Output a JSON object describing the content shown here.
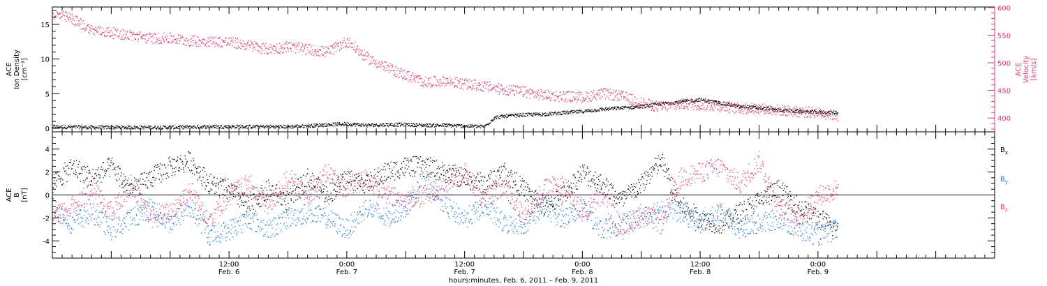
{
  "colors": {
    "axis": "#000000",
    "black_series": "#000000",
    "pink_series": "#e0366a",
    "blue_series": "#1e78d2"
  },
  "x_axis": {
    "title": "hours:minutes, Feb.  6, 2011 – Feb.  9, 2011",
    "range_hours": [
      0,
      96
    ],
    "ticks": [
      {
        "hour": 18,
        "time": "12:00",
        "date": "Feb. 6"
      },
      {
        "hour": 30,
        "time": "0:00",
        "date": "Feb. 7"
      },
      {
        "hour": 42,
        "time": "12:00",
        "date": "Feb. 7"
      },
      {
        "hour": 54,
        "time": "0:00",
        "date": "Feb. 8"
      },
      {
        "hour": 66,
        "time": "12:00",
        "date": "Feb. 8"
      },
      {
        "hour": 78,
        "time": "0:00",
        "date": "Feb. 9"
      }
    ]
  },
  "chart_data": [
    {
      "type": "scatter",
      "panel": "top",
      "ylabel_left": [
        "ACE",
        "Ion Density",
        "[cm⁻³]"
      ],
      "ylabel_right": [
        "ACE",
        "Velocity",
        "[km/s]"
      ],
      "ylim_left": [
        -0.5,
        17.5
      ],
      "ylim_right": [
        375,
        601
      ],
      "yticks_left": [
        0,
        5,
        10,
        15
      ],
      "yticks_right": [
        400,
        450,
        500,
        550,
        600
      ],
      "series": [
        {
          "axis": "left",
          "color": "#000000",
          "hours": [
            0,
            4,
            8,
            12,
            16,
            20,
            24,
            26,
            28,
            30,
            32,
            34,
            36,
            38,
            40,
            42,
            44,
            45,
            46,
            48,
            50,
            52,
            54,
            56,
            58,
            60,
            62,
            64,
            66,
            68,
            70,
            72,
            74,
            76,
            78,
            80
          ],
          "values": [
            0.3,
            0.2,
            0.2,
            0.2,
            0.3,
            0.3,
            0.3,
            0.4,
            0.6,
            0.7,
            0.5,
            0.6,
            0.6,
            0.5,
            0.5,
            0.4,
            0.3,
            1.6,
            1.8,
            2.0,
            2.1,
            2.3,
            2.5,
            2.8,
            3.0,
            3.2,
            3.6,
            3.9,
            4.2,
            3.7,
            3.2,
            3.0,
            2.7,
            2.5,
            2.4,
            2.3
          ]
        },
        {
          "axis": "right",
          "color": "#e0366a",
          "hours": [
            0,
            2,
            4,
            6,
            8,
            10,
            12,
            14,
            16,
            18,
            20,
            22,
            24,
            26,
            28,
            30,
            32,
            34,
            36,
            38,
            40,
            42,
            44,
            46,
            48,
            50,
            52,
            54,
            56,
            58,
            60,
            62,
            64,
            66,
            68,
            70,
            72,
            74,
            76,
            78,
            80
          ],
          "values": [
            590,
            580,
            560,
            555,
            550,
            545,
            545,
            540,
            540,
            538,
            532,
            525,
            530,
            525,
            520,
            540,
            510,
            492,
            478,
            465,
            468,
            462,
            458,
            452,
            448,
            442,
            440,
            438,
            445,
            440,
            428,
            420,
            426,
            425,
            422,
            418,
            418,
            415,
            412,
            410,
            405
          ]
        }
      ]
    },
    {
      "type": "scatter",
      "panel": "bottom",
      "ylabel_left": [
        "ACE",
        "B",
        "[nT]"
      ],
      "ylim": [
        -5.5,
        5.5
      ],
      "yticks": [
        -4,
        -2,
        0,
        2,
        4
      ],
      "zero_line": true,
      "series": [
        {
          "name": "Bx",
          "color": "#000000",
          "hours": [
            0,
            2,
            4,
            6,
            8,
            10,
            12,
            14,
            16,
            18,
            20,
            22,
            24,
            26,
            28,
            30,
            32,
            34,
            36,
            38,
            40,
            42,
            44,
            46,
            48,
            50,
            52,
            54,
            56,
            58,
            60,
            62,
            64,
            66,
            68,
            70,
            72,
            74,
            76,
            78,
            80
          ],
          "values": [
            1.0,
            2.5,
            1.5,
            2.5,
            0.5,
            1.5,
            2.5,
            3.0,
            1.0,
            0.5,
            -1.0,
            0.5,
            -0.5,
            1.5,
            0.0,
            1.5,
            1.0,
            2.0,
            2.5,
            2.5,
            2.0,
            1.5,
            1.0,
            2.0,
            0.5,
            -1.0,
            0.0,
            2.0,
            1.0,
            -0.5,
            1.0,
            3.0,
            -1.0,
            -2.0,
            -2.5,
            -1.5,
            -0.5,
            0.5,
            -1.0,
            -2.0,
            -3.0
          ]
        },
        {
          "name": "By",
          "color": "#1e78d2",
          "hours": [
            0,
            2,
            4,
            6,
            8,
            10,
            12,
            14,
            16,
            18,
            20,
            22,
            24,
            26,
            28,
            30,
            32,
            34,
            36,
            38,
            40,
            42,
            44,
            46,
            48,
            50,
            52,
            54,
            56,
            58,
            60,
            62,
            64,
            66,
            68,
            70,
            72,
            74,
            76,
            78,
            80
          ],
          "values": [
            -1.0,
            -2.5,
            -1.5,
            -3.0,
            -2.0,
            -1.0,
            -2.5,
            -1.0,
            -3.5,
            -3.0,
            -2.0,
            -3.0,
            -2.0,
            -1.5,
            -2.0,
            -3.0,
            -1.0,
            -2.0,
            -1.0,
            1.5,
            -1.0,
            -2.0,
            -1.0,
            -2.5,
            -2.5,
            -1.0,
            -2.0,
            -1.0,
            -3.0,
            -2.5,
            -2.0,
            -1.0,
            -1.5,
            -2.5,
            -1.5,
            -3.0,
            -2.5,
            -2.0,
            -3.0,
            -3.5,
            -3.0
          ]
        },
        {
          "name": "Bz",
          "color": "#e0366a",
          "hours": [
            0,
            2,
            4,
            6,
            8,
            10,
            12,
            14,
            16,
            18,
            20,
            22,
            24,
            26,
            28,
            30,
            32,
            34,
            36,
            38,
            40,
            42,
            44,
            46,
            48,
            50,
            52,
            54,
            56,
            58,
            60,
            62,
            64,
            66,
            68,
            70,
            72,
            74,
            76,
            78,
            80
          ],
          "values": [
            -2.0,
            -1.0,
            0.5,
            -1.5,
            1.0,
            -2.0,
            -1.5,
            0.5,
            -2.0,
            0.0,
            1.0,
            -1.0,
            1.5,
            0.0,
            2.0,
            0.5,
            1.5,
            0.0,
            -0.5,
            0.0,
            1.0,
            2.0,
            -0.5,
            1.0,
            -2.0,
            0.5,
            1.0,
            -1.5,
            0.0,
            -3.0,
            -1.5,
            -2.5,
            1.5,
            2.0,
            2.5,
            1.0,
            3.0,
            -1.0,
            -2.0,
            0.0,
            0.5
          ]
        }
      ]
    }
  ]
}
